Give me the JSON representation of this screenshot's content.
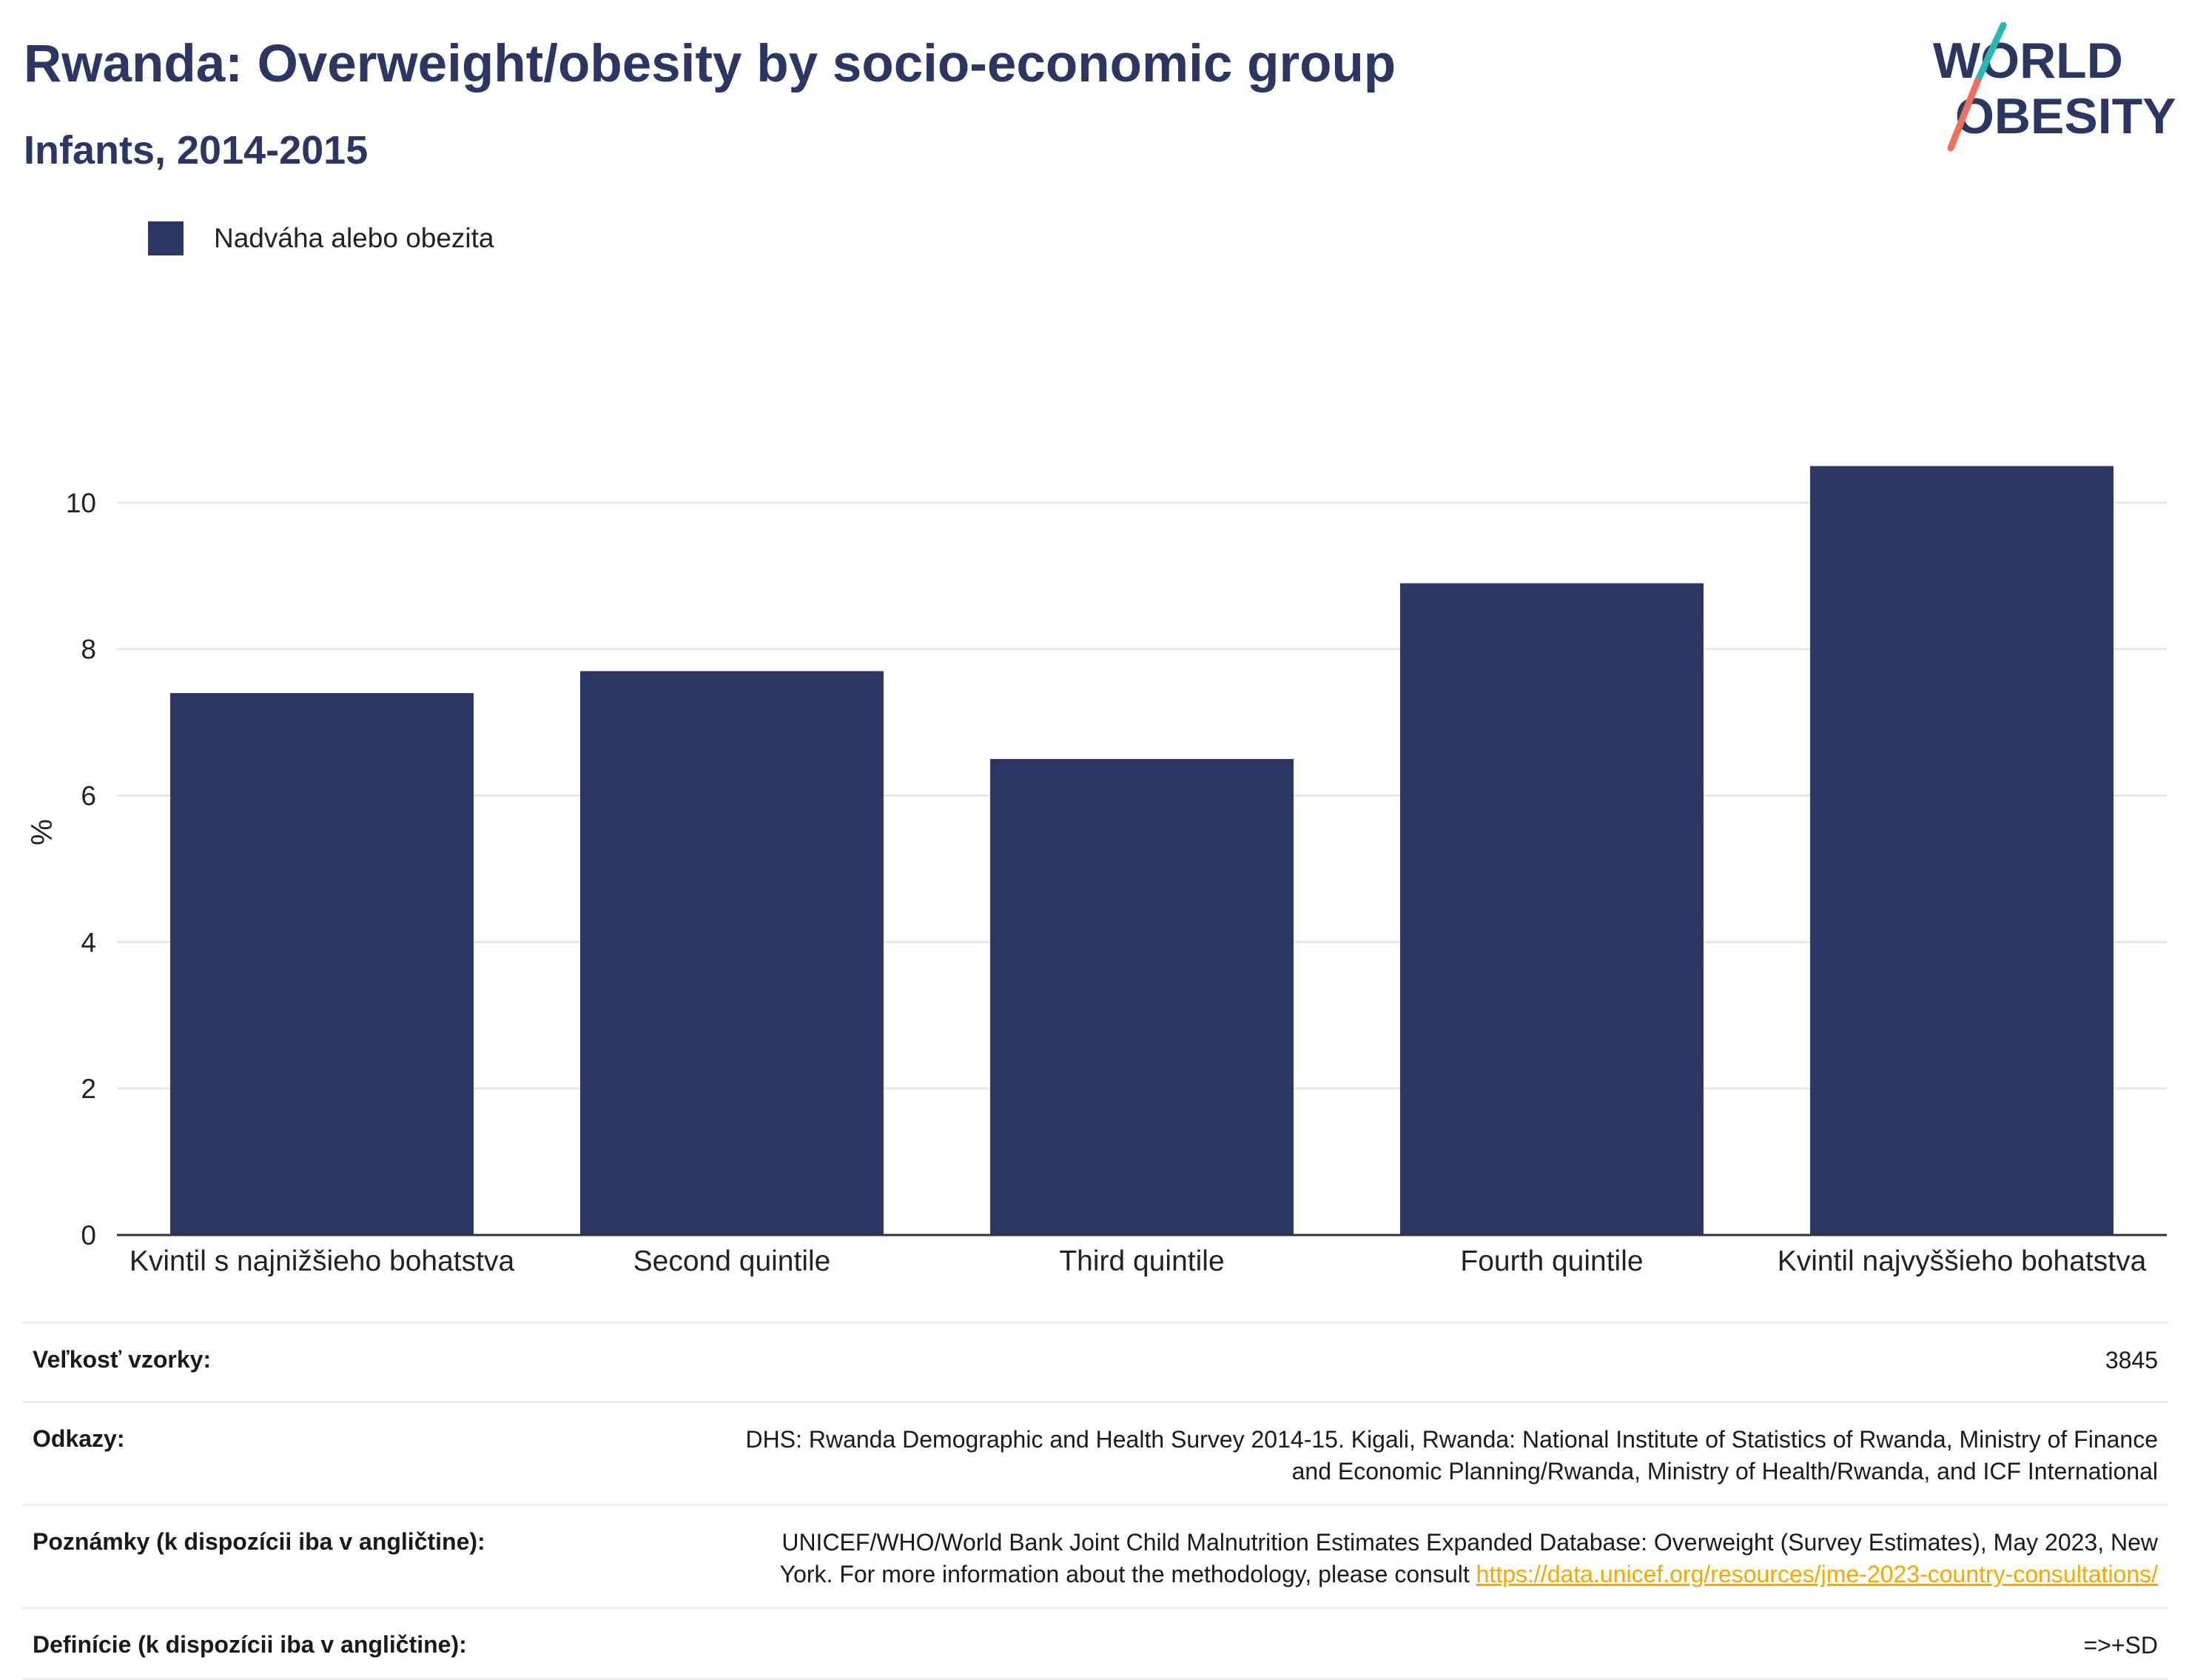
{
  "header": {
    "title": "Rwanda: Overweight/obesity by socio-economic group",
    "subtitle": "Infants, 2014-2015"
  },
  "logo": {
    "line1": "WORLD",
    "line2": "OBESITY",
    "accent_teal": "#2bb6b2",
    "accent_coral": "#ef6f5e"
  },
  "colors": {
    "bar": "#2b3663",
    "title": "#2b3663",
    "gridline": "#e6e6ee",
    "axis": "#333333",
    "link": "#f2a900"
  },
  "chart_data": {
    "type": "bar",
    "title": "Rwanda: Overweight/obesity by socio-economic group",
    "subtitle": "Infants, 2014-2015",
    "ylabel": "%",
    "xlabel": "",
    "ylim": [
      0,
      11
    ],
    "yticks": [
      0,
      2,
      4,
      6,
      8,
      10
    ],
    "grid": true,
    "legend_position": "top-left",
    "categories": [
      "Kvintil s najnižšieho bohatstva",
      "Second quintile",
      "Third quintile",
      "Fourth quintile",
      "Kvintil najvyššieho bohatstva"
    ],
    "series": [
      {
        "name": "Nadváha alebo obezita",
        "values": [
          7.4,
          7.7,
          6.5,
          8.9,
          10.5
        ]
      }
    ]
  },
  "info": {
    "sample_size": {
      "label": "Veľkosť vzorky:",
      "value": "3845"
    },
    "references": {
      "label": "Odkazy:",
      "line1": "DHS: Rwanda Demographic and Health Survey 2014-15. Kigali, Rwanda: National Institute of Statistics of Rwanda, Ministry of Finance",
      "line2": "and Economic Planning/Rwanda, Ministry of Health/Rwanda, and ICF International"
    },
    "notes": {
      "label": "Poznámky (k dispozícii iba v angličtine):",
      "line1": "UNICEF/WHO/World Bank Joint Child Malnutrition Estimates Expanded Database: Overweight (Survey Estimates), May 2023, New",
      "line2": "York. For more information about the methodology, please consult",
      "link": "https://data.unicef.org/resources/jme-2023-country-consultations/"
    },
    "definitions": {
      "label": "Definície (k dispozícii iba v angličtine):",
      "value": "=>+SD"
    }
  }
}
